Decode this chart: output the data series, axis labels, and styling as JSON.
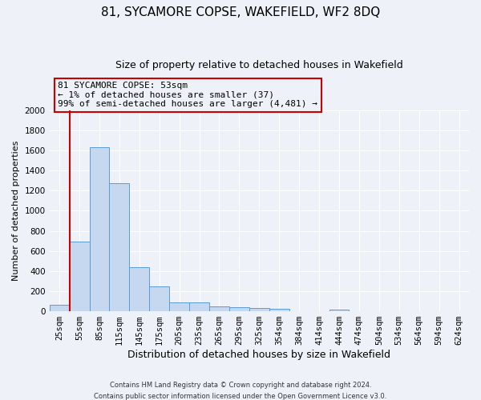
{
  "title": "81, SYCAMORE COPSE, WAKEFIELD, WF2 8DQ",
  "subtitle": "Size of property relative to detached houses in Wakefield",
  "xlabel": "Distribution of detached houses by size in Wakefield",
  "ylabel": "Number of detached properties",
  "categories": [
    "25sqm",
    "55sqm",
    "85sqm",
    "115sqm",
    "145sqm",
    "175sqm",
    "205sqm",
    "235sqm",
    "265sqm",
    "295sqm",
    "325sqm",
    "354sqm",
    "384sqm",
    "414sqm",
    "444sqm",
    "474sqm",
    "504sqm",
    "534sqm",
    "564sqm",
    "594sqm",
    "624sqm"
  ],
  "bar_values": [
    65,
    690,
    1630,
    1275,
    435,
    250,
    85,
    85,
    50,
    40,
    30,
    25,
    0,
    0,
    20,
    0,
    0,
    0,
    0,
    0,
    0
  ],
  "bar_color": "#c5d8f0",
  "bar_edge_color": "#5b9bd5",
  "ylim": [
    0,
    2000
  ],
  "yticks": [
    0,
    200,
    400,
    600,
    800,
    1000,
    1200,
    1400,
    1600,
    1800,
    2000
  ],
  "vline_x": 0.5,
  "vline_color": "#cc0000",
  "annotation_text": "81 SYCAMORE COPSE: 53sqm\n← 1% of detached houses are smaller (37)\n99% of semi-detached houses are larger (4,481) →",
  "annotation_box_color": "#cc0000",
  "footer_line1": "Contains HM Land Registry data © Crown copyright and database right 2024.",
  "footer_line2": "Contains public sector information licensed under the Open Government Licence v3.0.",
  "bg_color": "#eef2f8",
  "grid_color": "#ffffff",
  "title_fontsize": 11,
  "subtitle_fontsize": 9,
  "ylabel_fontsize": 8,
  "xlabel_fontsize": 9,
  "tick_fontsize": 7.5,
  "ann_fontsize": 8
}
